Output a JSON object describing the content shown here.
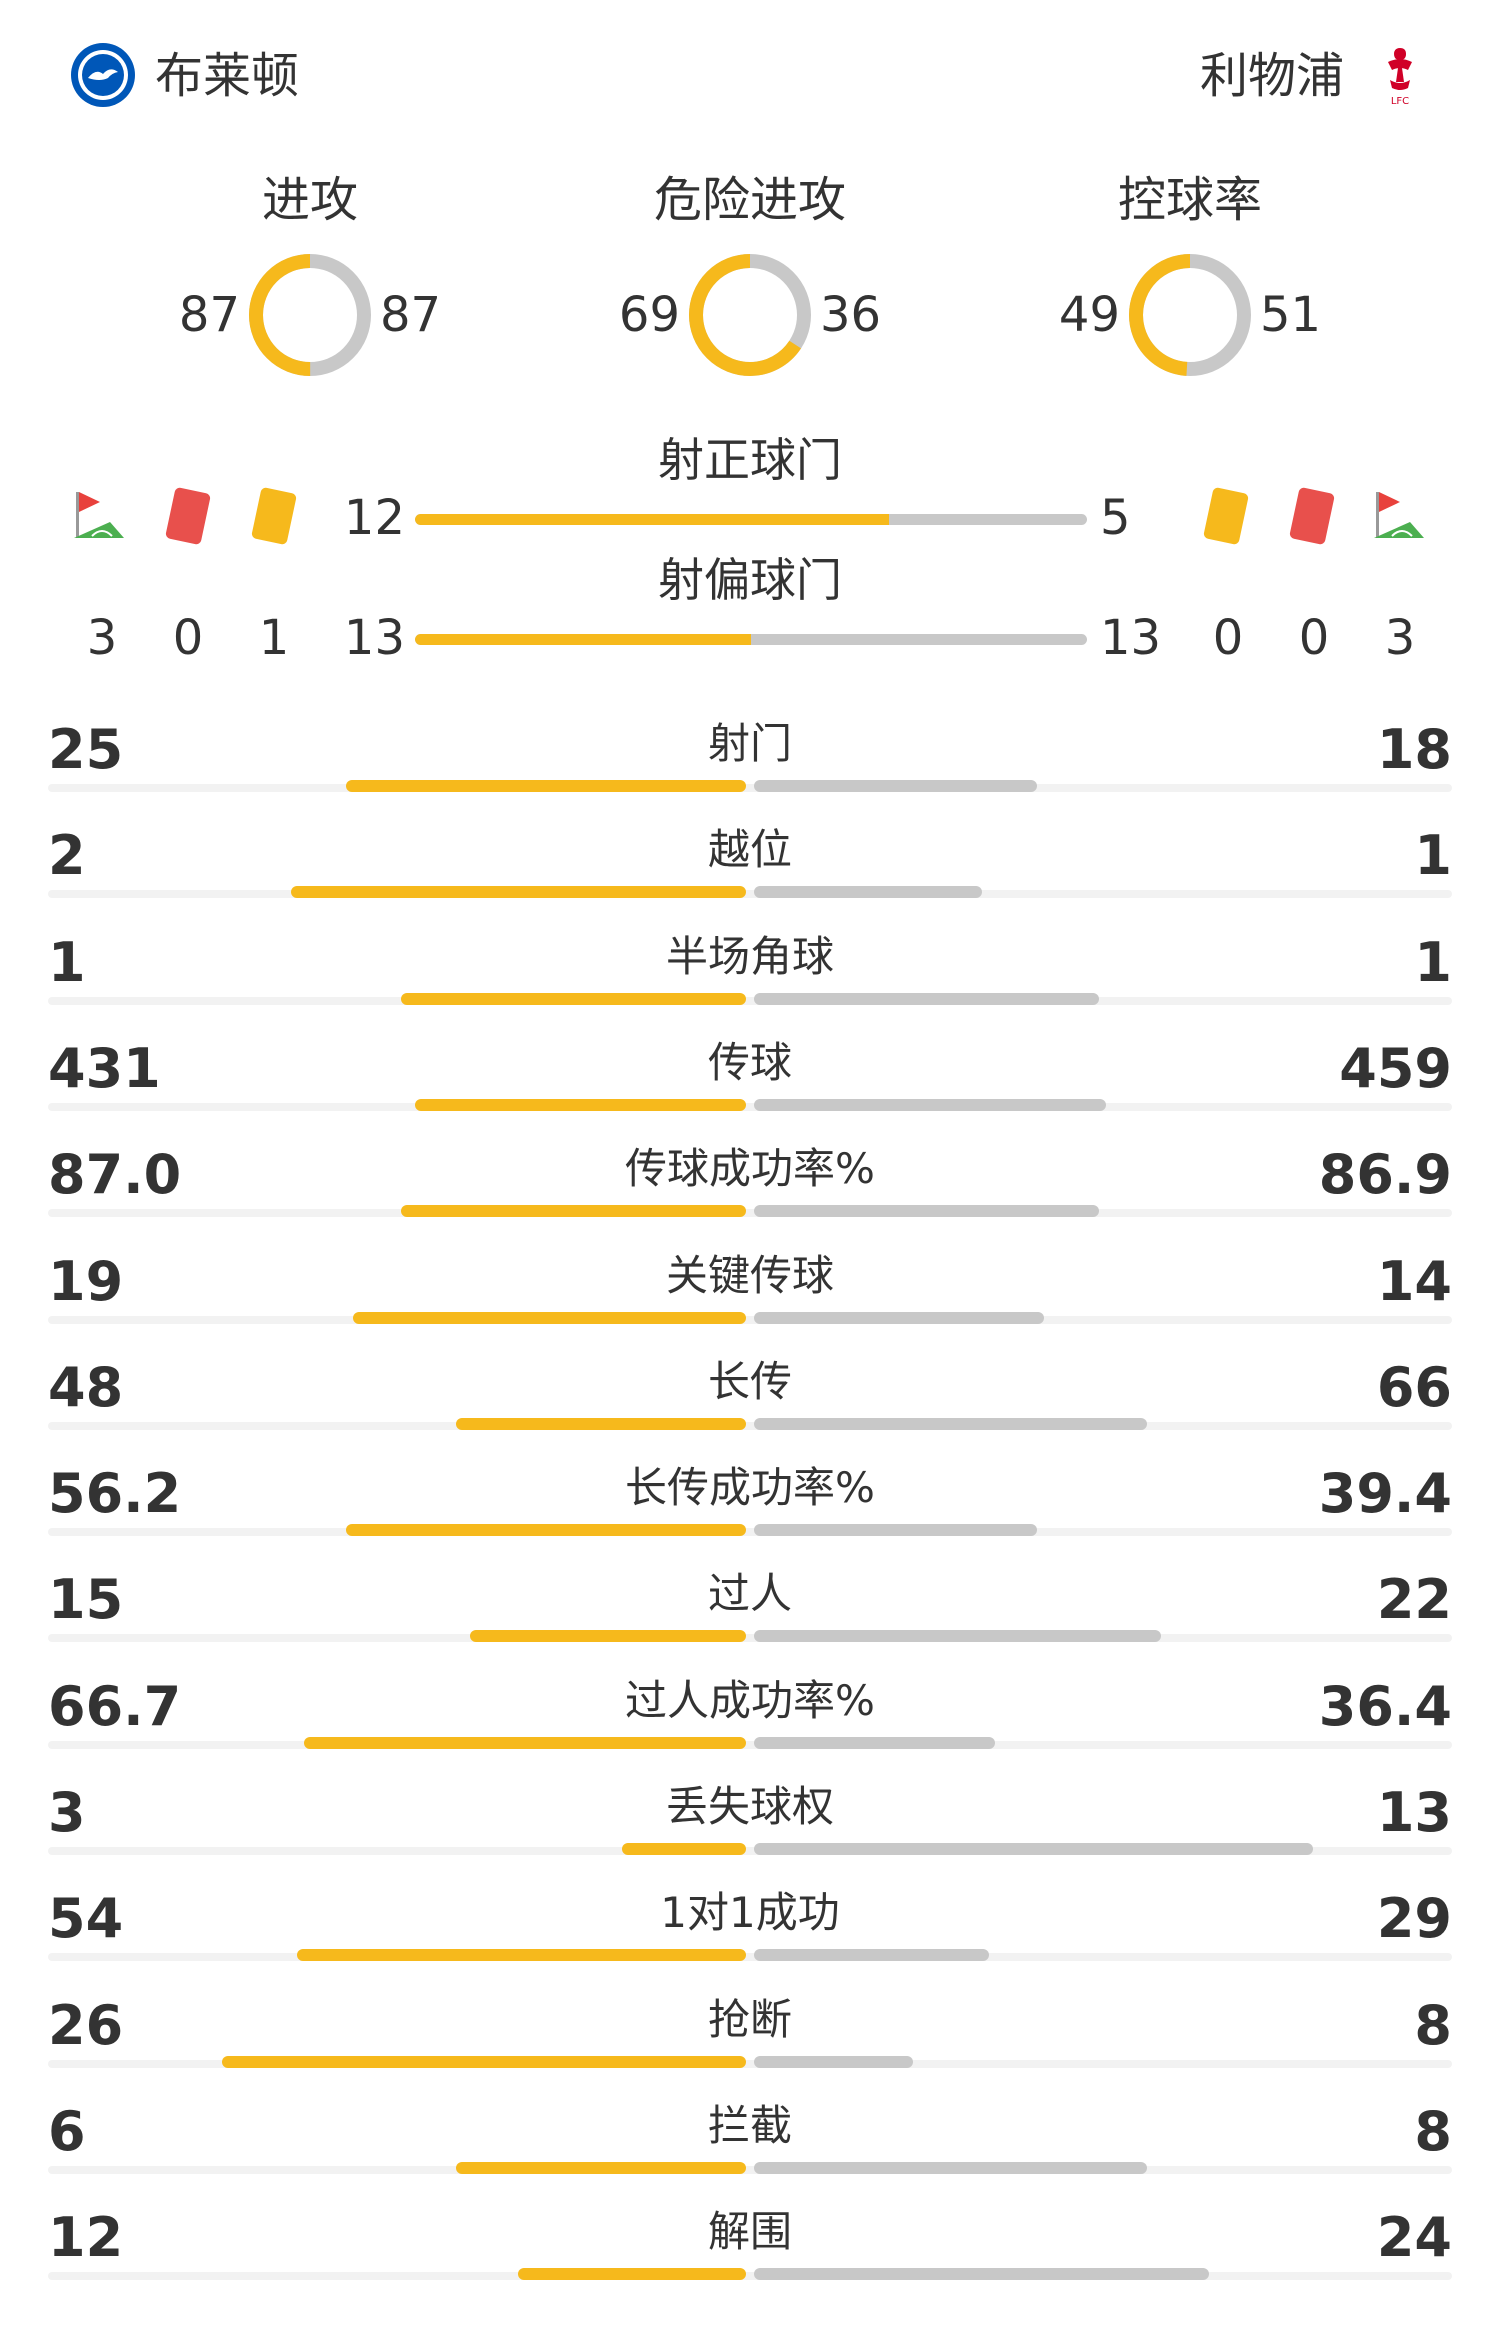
{
  "teams": {
    "home": {
      "name": "布莱顿",
      "logo_icon": "brighton-crest-icon",
      "color": "#f6b91c"
    },
    "away": {
      "name": "利物浦",
      "logo_icon": "liverpool-crest-icon",
      "color": "#c8c8c8"
    }
  },
  "circles": [
    {
      "title": "进攻",
      "home": "87",
      "away": "87",
      "home_share": 0.5
    },
    {
      "title": "危险进攻",
      "home": "69",
      "away": "36",
      "home_share": 0.657
    },
    {
      "title": "控球率",
      "home": "49",
      "away": "51",
      "home_share": 0.49
    }
  ],
  "shots": {
    "on_target": {
      "label": "射正球门",
      "home": "12",
      "away": "5",
      "home_share": 0.706
    },
    "off_target": {
      "label": "射偏球门",
      "home": "13",
      "away": "13",
      "home_share": 0.5
    }
  },
  "discipline": {
    "icons": [
      "corner-flag-icon",
      "red-card-icon",
      "yellow-card-icon"
    ],
    "home": {
      "corners": "3",
      "red_cards": "0",
      "yellow_cards": "1"
    },
    "away": {
      "yellow_cards": "0",
      "red_cards": "0",
      "corners": "3"
    }
  },
  "stats": [
    {
      "label": "射门",
      "home": "25",
      "away": "18",
      "home_frac": 0.58,
      "away_frac": 0.41
    },
    {
      "label": "越位",
      "home": "2",
      "away": "1",
      "home_frac": 0.66,
      "away_frac": 0.33
    },
    {
      "label": "半场角球",
      "home": "1",
      "away": "1",
      "home_frac": 0.5,
      "away_frac": 0.5
    },
    {
      "label": "传球",
      "home": "431",
      "away": "459",
      "home_frac": 0.48,
      "away_frac": 0.51
    },
    {
      "label": "传球成功率%",
      "home": "87.0",
      "away": "86.9",
      "home_frac": 0.5,
      "away_frac": 0.5
    },
    {
      "label": "关键传球",
      "home": "19",
      "away": "14",
      "home_frac": 0.57,
      "away_frac": 0.42
    },
    {
      "label": "长传",
      "home": "48",
      "away": "66",
      "home_frac": 0.42,
      "away_frac": 0.57
    },
    {
      "label": "长传成功率%",
      "home": "56.2",
      "away": "39.4",
      "home_frac": 0.58,
      "away_frac": 0.41
    },
    {
      "label": "过人",
      "home": "15",
      "away": "22",
      "home_frac": 0.4,
      "away_frac": 0.59
    },
    {
      "label": "过人成功率%",
      "home": "66.7",
      "away": "36.4",
      "home_frac": 0.64,
      "away_frac": 0.35
    },
    {
      "label": "丢失球权",
      "home": "3",
      "away": "13",
      "home_frac": 0.18,
      "away_frac": 0.81
    },
    {
      "label": "1对1成功",
      "home": "54",
      "away": "29",
      "home_frac": 0.65,
      "away_frac": 0.34
    },
    {
      "label": "抢断",
      "home": "26",
      "away": "8",
      "home_frac": 0.76,
      "away_frac": 0.23
    },
    {
      "label": "拦截",
      "home": "6",
      "away": "8",
      "home_frac": 0.42,
      "away_frac": 0.57
    },
    {
      "label": "解围",
      "home": "12",
      "away": "24",
      "home_frac": 0.33,
      "away_frac": 0.66
    }
  ]
}
